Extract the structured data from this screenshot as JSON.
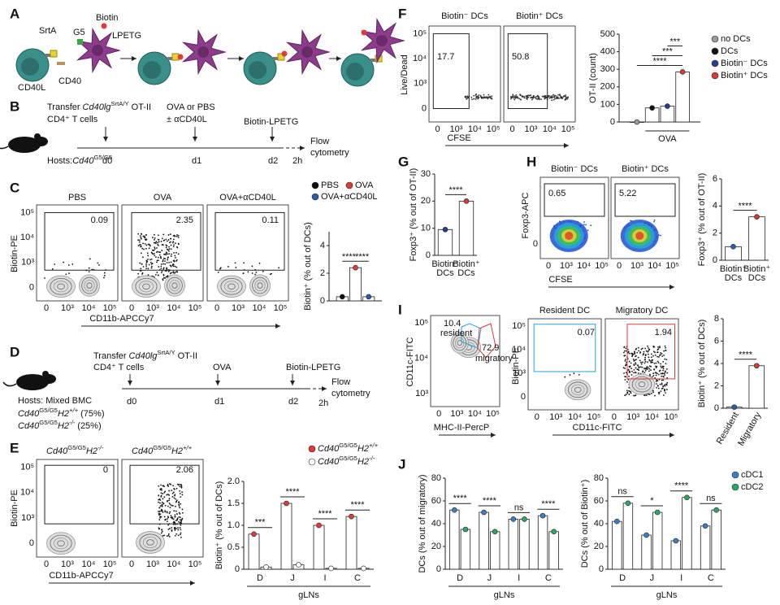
{
  "A": {
    "letter": "A",
    "srta": "SrtA",
    "g5": "G5",
    "biotin": "Biotin",
    "lpetg": "LPETG",
    "cd40l": "CD40L",
    "cd40": "CD40"
  },
  "B": {
    "letter": "B",
    "transfer": "Transfer",
    "gene": "Cd40lg",
    "gene_sup": "SrtA/Y",
    "otii": "OT-II",
    "cells": "CD4⁺ T cells",
    "ova": "OVA or PBS",
    "acd40l": "± αCD40L",
    "biotin": "Biotin-LPETG",
    "hosts": "Hosts:",
    "host_gene": "Cd40",
    "host_sup": "G5/G5",
    "days": [
      "d0",
      "d1",
      "d2"
    ],
    "h": "2h",
    "flow": [
      "Flow",
      "cytometry"
    ]
  },
  "C": {
    "letter": "C",
    "plots": [
      {
        "title": "PBS",
        "gate": "0.09"
      },
      {
        "title": "OVA",
        "gate": "2.35"
      },
      {
        "title": "OVA+αCD40L",
        "gate": "0.11"
      }
    ],
    "ylabel": "Biotin-PE",
    "xlabel": "CD11b-APCCy7",
    "yticks": [
      "10⁵",
      "10⁴",
      "10³",
      "0"
    ],
    "xticks": [
      "0",
      "10³",
      "10⁴",
      "10⁵"
    ],
    "chart": {
      "type": "bar",
      "ylabel": "Biotin⁺ (% out of DCs)",
      "categories": [
        null
      ],
      "series": [
        {
          "name": "PBS",
          "color": "#111111",
          "values": [
            0.3
          ]
        },
        {
          "name": "OVA",
          "color": "#e03a3a",
          "values": [
            2.4
          ]
        },
        {
          "name": "OVA+αCD40L",
          "color": "#2b5ea8",
          "values": [
            0.3
          ]
        }
      ],
      "ylim": [
        0,
        5
      ],
      "yticks": [
        0,
        2,
        4
      ],
      "sig": [
        "****",
        "****"
      ]
    }
  },
  "D": {
    "letter": "D",
    "transfer": "Transfer",
    "gene": "Cd40lg",
    "gene_sup": "SrtA/Y",
    "otii": "OT-II",
    "cells": "CD4⁺ T cells",
    "ova": "OVA",
    "biotin": "Biotin-LPETG",
    "hosts": "Hosts: Mixed BMC",
    "host1": [
      "Cd40",
      "G5/G5",
      "H2",
      "+/+",
      "(75%)"
    ],
    "host2": [
      "Cd40",
      "G5/G5",
      "H2",
      "-/-",
      "(25%)"
    ],
    "days": [
      "d0",
      "d1",
      "d2"
    ],
    "h": "2h",
    "flow": [
      "Flow",
      "cytometry"
    ]
  },
  "E": {
    "letter": "E",
    "plots": [
      {
        "title": [
          "Cd40",
          "G5/G5",
          "H2",
          "-/-"
        ],
        "gate": "0"
      },
      {
        "title": [
          "Cd40",
          "G5/G5",
          "H2",
          "+/+"
        ],
        "gate": "2.06"
      }
    ],
    "ylabel": "Biotin-PE",
    "xlabel": "CD11b-APCCy7",
    "yticks": [
      "10⁵",
      "10⁴",
      "10³",
      "0"
    ],
    "xticks": [
      "0",
      "10³",
      "10⁴",
      "10⁵"
    ],
    "chart": {
      "type": "bar",
      "ylabel": "Biotin⁺ (% out of DCs)",
      "xlabel": "gLNs",
      "categories": [
        "D",
        "J",
        "I",
        "C"
      ],
      "series": [
        {
          "name": [
            "Cd40",
            "G5/G5",
            "H2",
            "+/+"
          ],
          "color": "#e03a3a",
          "values": [
            0.8,
            1.5,
            1.0,
            1.2
          ]
        },
        {
          "name": [
            "Cd40",
            "G5/G5",
            "H2",
            "-/-"
          ],
          "color": "#ffffff",
          "values": [
            0.05,
            0.1,
            0.02,
            0.02
          ]
        }
      ],
      "ylim": [
        0,
        2
      ],
      "yticks": [
        0,
        0.5,
        {
          "value": 1,
          "label": "1.0"
        },
        1.5,
        {
          "value": 2,
          "label": "2.0"
        }
      ],
      "sig": [
        "***",
        "****",
        "****",
        "****"
      ]
    }
  },
  "F": {
    "letter": "F",
    "plots": [
      {
        "title": "Biotin⁻ DCs",
        "gate": "17.7"
      },
      {
        "title": "Biotin⁺ DCs",
        "gate": "50.8"
      }
    ],
    "ylabel": "Live/Dead",
    "xlabel": "CFSE",
    "yticks": [
      "10⁵",
      "10⁴",
      "10³",
      "0"
    ],
    "xticks": [
      "0",
      "10³",
      "10⁴",
      "10⁵"
    ],
    "chart": {
      "type": "bar",
      "ylabel": "OT-II (count)",
      "categories": [
        null
      ],
      "series": [
        {
          "name": "no DCs",
          "color": "#9a9a9a",
          "values": [
            0
          ]
        },
        {
          "name": "DCs",
          "color": "#111111",
          "values": [
            80
          ]
        },
        {
          "name": "Biotin⁻ DCs",
          "color": "#2b3d8f",
          "values": [
            90
          ]
        },
        {
          "name": "Biotin⁺ DCs",
          "color": "#d43a3a",
          "values": [
            285
          ]
        }
      ],
      "ylim": [
        0,
        500
      ],
      "yticks": [
        0,
        100,
        200,
        300,
        400,
        500
      ],
      "sig": [
        "***",
        "***",
        "****"
      ],
      "group_label": "OVA"
    }
  },
  "G": {
    "letter": "G",
    "chart": {
      "type": "bar",
      "ylabel": "Foxp3⁺ (% out of OT-II)",
      "categories": [
        [
          "Biotin⁻",
          "DCs"
        ],
        [
          "Biotin⁺",
          "DCs"
        ]
      ],
      "values": [
        9.5,
        20
      ],
      "colors": [
        "#2b3d8f",
        "#d43a3a"
      ],
      "ylim": [
        0,
        30
      ],
      "yticks": [
        0,
        10,
        20,
        30
      ],
      "sig": [
        "****"
      ]
    }
  },
  "H": {
    "letter": "H",
    "plots": [
      {
        "title": "Biotin⁻ DCs",
        "gate": "0.65"
      },
      {
        "title": "Biotin⁺ DCs",
        "gate": "5.22"
      }
    ],
    "ylabel": "Foxp3-APC",
    "xlabel": "CFSE",
    "yticks": [
      "0"
    ],
    "xticks": [
      "0",
      "10³",
      "10⁴",
      "10⁵"
    ],
    "chart": {
      "type": "bar",
      "ylabel": "Foxp3⁺ (% out of OT-II)",
      "categories": [
        [
          "Biotin⁻",
          "DCs"
        ],
        [
          "Biotin⁺",
          "DCs"
        ]
      ],
      "values": [
        1.0,
        3.2
      ],
      "colors": [
        "#2b5ea8",
        "#d43a3a"
      ],
      "ylim": [
        0,
        6
      ],
      "yticks": [
        0,
        2,
        4,
        6
      ],
      "sig": [
        "****"
      ]
    }
  },
  "I": {
    "letter": "I",
    "plot1": {
      "resident_value": "10.4",
      "resident": "resident",
      "migratory_value": "72.9",
      "migratory": "migratory",
      "ylabel": "CD11c-FITC",
      "xlabel": "MHC-II-PercP",
      "yticks": [
        "10⁵",
        "10⁴",
        "10³"
      ],
      "xticks": [
        "0",
        "10³",
        "10⁴",
        "10⁵"
      ]
    },
    "plots": [
      {
        "title": "Resident DC",
        "gate": "0.07"
      },
      {
        "title": "Migratory DC",
        "gate": "1.94"
      }
    ],
    "ylabel": "Biotin-PE",
    "xlabel": "CD11c-FITC",
    "yticks": [
      "10⁵",
      "10⁴",
      "10³",
      "0"
    ],
    "xticks": [
      "0",
      "10³",
      "10⁴",
      "10⁵"
    ],
    "chart": {
      "type": "bar",
      "ylabel": "Biotin⁺ (% out of DCs)",
      "categories": [
        "Resident",
        "Migratory"
      ],
      "values": [
        0.1,
        3.8
      ],
      "colors": [
        "#2b5ea8",
        "#d43a3a"
      ],
      "ylim": [
        0,
        8
      ],
      "yticks": [
        0,
        2,
        4,
        6,
        8
      ],
      "sig": [
        "****"
      ]
    }
  },
  "J": {
    "letter": "J",
    "legend": [
      {
        "name": "cDC1",
        "color": "#3d7fc0"
      },
      {
        "name": "cDC2",
        "color": "#2aa86b"
      }
    ],
    "charts": [
      {
        "type": "bar",
        "ylabel": "DCs (% out of migratory)",
        "xlabel": "gLNs",
        "categories": [
          "D",
          "J",
          "I",
          "C"
        ],
        "series": [
          {
            "values": [
              52,
              50,
              44,
              47
            ]
          },
          {
            "values": [
              35,
              33,
              44,
              33
            ]
          }
        ],
        "ylim": [
          0,
          80
        ],
        "yticks": [
          0,
          20,
          40,
          60,
          80
        ],
        "sig": [
          "****",
          "****",
          "ns",
          "****"
        ]
      },
      {
        "type": "bar",
        "ylabel": "DCs (% out of Biotin⁺)",
        "xlabel": "gLNs",
        "categories": [
          "D",
          "J",
          "I",
          "C"
        ],
        "series": [
          {
            "values": [
              42,
              30,
              25,
              38
            ]
          },
          {
            "values": [
              58,
              50,
              63,
              52
            ]
          }
        ],
        "ylim": [
          0,
          80
        ],
        "yticks": [
          0,
          20,
          40,
          60,
          80
        ],
        "sig": [
          "ns",
          "*",
          "****",
          "ns"
        ]
      }
    ]
  }
}
